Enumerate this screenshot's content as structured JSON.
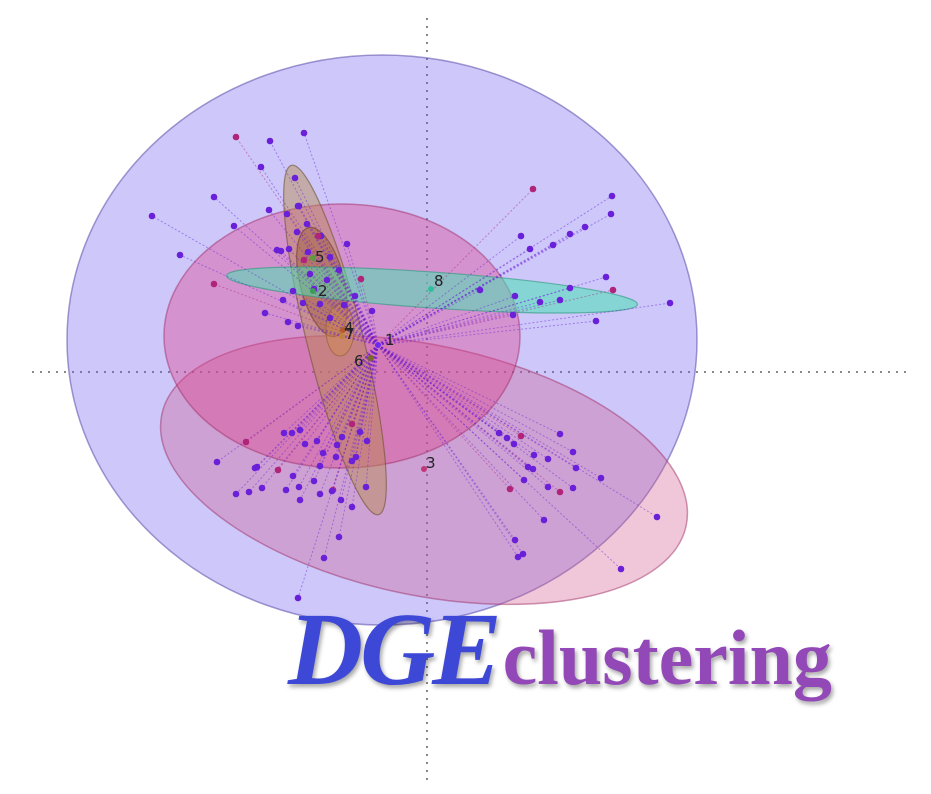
{
  "logo": {
    "part1": "DGE",
    "part2": "clustering"
  },
  "clusters": [
    {
      "label": "1",
      "color": "#6a2bf0"
    },
    {
      "label": "2",
      "color": "#3c9a5a"
    },
    {
      "label": "3",
      "color": "#c0387a"
    },
    {
      "label": "4",
      "color": "#b45a2a"
    },
    {
      "label": "5",
      "color": "#5c9a40"
    },
    {
      "label": "6",
      "color": "#7a6a2a"
    },
    {
      "label": "7",
      "color": "#c08040"
    },
    {
      "label": "8",
      "color": "#2ec09a"
    }
  ],
  "colors": {
    "point_main": "#6a1fd8",
    "point_alt": "#b0247a",
    "axis_dotted": "#808080"
  }
}
